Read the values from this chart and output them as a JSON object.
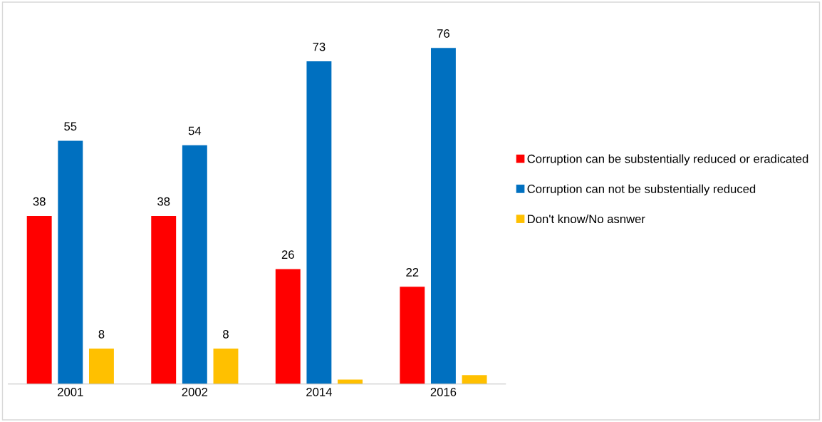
{
  "chart_data": {
    "type": "bar",
    "categories": [
      "2001",
      "2002",
      "2014",
      "2016"
    ],
    "series": [
      {
        "name": "Corruption can be substentially reduced or eradicated",
        "color": "#ff0000",
        "values": [
          38,
          38,
          26,
          22
        ]
      },
      {
        "name": "Corruption can not be substentially reduced",
        "color": "#0070c0",
        "values": [
          55,
          54,
          73,
          76
        ]
      },
      {
        "name": "Don't know/No asnwer",
        "color": "#ffc000",
        "values": [
          8,
          8,
          1,
          2
        ],
        "value_labels": [
          "8",
          "8",
          null,
          null
        ]
      }
    ],
    "data_labels": true,
    "legend": "right",
    "tick_labels": "x",
    "grid": false
  }
}
